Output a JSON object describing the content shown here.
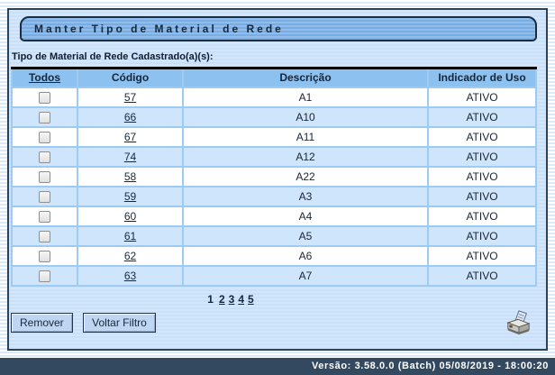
{
  "window": {
    "title": "Manter Tipo de Material de Rede"
  },
  "section_label": "Tipo de Material de Rede Cadastrado(a)(s):",
  "table": {
    "headers": {
      "todos": "Todos",
      "codigo": "Código",
      "descricao": "Descrição",
      "indicador": "Indicador de Uso"
    },
    "rows": [
      {
        "codigo": "57",
        "descricao": "A1",
        "indicador": "ATIVO"
      },
      {
        "codigo": "66",
        "descricao": "A10",
        "indicador": "ATIVO"
      },
      {
        "codigo": "67",
        "descricao": "A11",
        "indicador": "ATIVO"
      },
      {
        "codigo": "74",
        "descricao": "A12",
        "indicador": "ATIVO"
      },
      {
        "codigo": "58",
        "descricao": "A22",
        "indicador": "ATIVO"
      },
      {
        "codigo": "59",
        "descricao": "A3",
        "indicador": "ATIVO"
      },
      {
        "codigo": "60",
        "descricao": "A4",
        "indicador": "ATIVO"
      },
      {
        "codigo": "61",
        "descricao": "A5",
        "indicador": "ATIVO"
      },
      {
        "codigo": "62",
        "descricao": "A6",
        "indicador": "ATIVO"
      },
      {
        "codigo": "63",
        "descricao": "A7",
        "indicador": "ATIVO"
      }
    ]
  },
  "pagination": {
    "current": "1",
    "pages": [
      "2",
      "3",
      "4",
      "5"
    ]
  },
  "buttons": {
    "remover": "Remover",
    "voltar_filtro": "Voltar Filtro"
  },
  "icons": {
    "printer": "printer-icon"
  },
  "footer": {
    "version_text": "Versão: 3.58.0.0 (Batch) 05/08/2019 - 18:00:20"
  },
  "colors": {
    "panel_bg": "#cfe4fb",
    "panel_border": "#2e4155",
    "tab_blue": "#84b6ea",
    "header_row_blue": "#8dc1ef",
    "row_alt_blue": "#cfe5fb",
    "grid_border_blue": "#9dcbf3",
    "footer_navy": "#33495f",
    "text_navy": "#16283d"
  }
}
